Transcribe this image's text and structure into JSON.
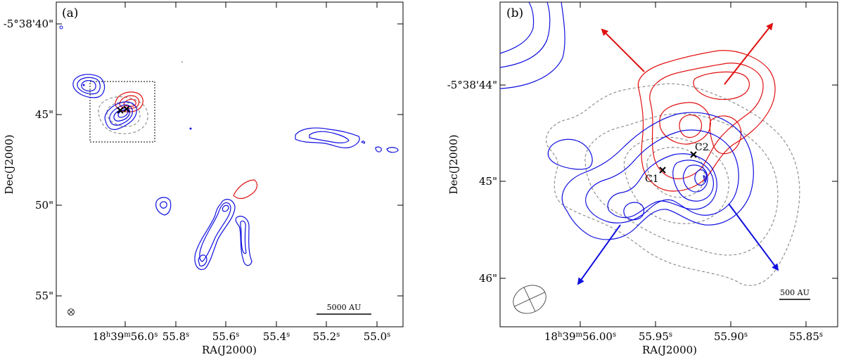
{
  "panel_a": {
    "label": "(a)",
    "y_ticks": [
      "-5°38'40\"",
      "45\"",
      "50\"",
      "55\""
    ],
    "x_tick_1": "18",
    "x_tick_1_h": "h",
    "x_tick_1_m": "39",
    "x_tick_1_msup": "m",
    "x_tick_1_s": "56.0",
    "x_ticks": [
      "55.8",
      "55.6",
      "55.4",
      "55.2",
      "55.0"
    ],
    "sec_sup": "s",
    "xlabel": "RA(J2000)",
    "ylabel": "Dec(J2000)",
    "scalebar": "5000 AU"
  },
  "panel_b": {
    "label": "(b)",
    "y_ticks": [
      "-5°38'44\"",
      "45\"",
      "46\""
    ],
    "x_tick_1": "18",
    "x_tick_1_h": "h",
    "x_tick_1_m": "39",
    "x_tick_1_msup": "m",
    "x_tick_1_s": "56.00",
    "x_ticks": [
      "55.95",
      "55.90",
      "55.85"
    ],
    "sec_sup": "s",
    "xlabel": "RA(J2000)",
    "ylabel": "Dec(J2000)",
    "scalebar": "500 AU",
    "source_c1": "C1",
    "source_c2": "C2"
  },
  "colors": {
    "blue": "#1010e0",
    "red": "#e01010",
    "grey": "#909090"
  }
}
